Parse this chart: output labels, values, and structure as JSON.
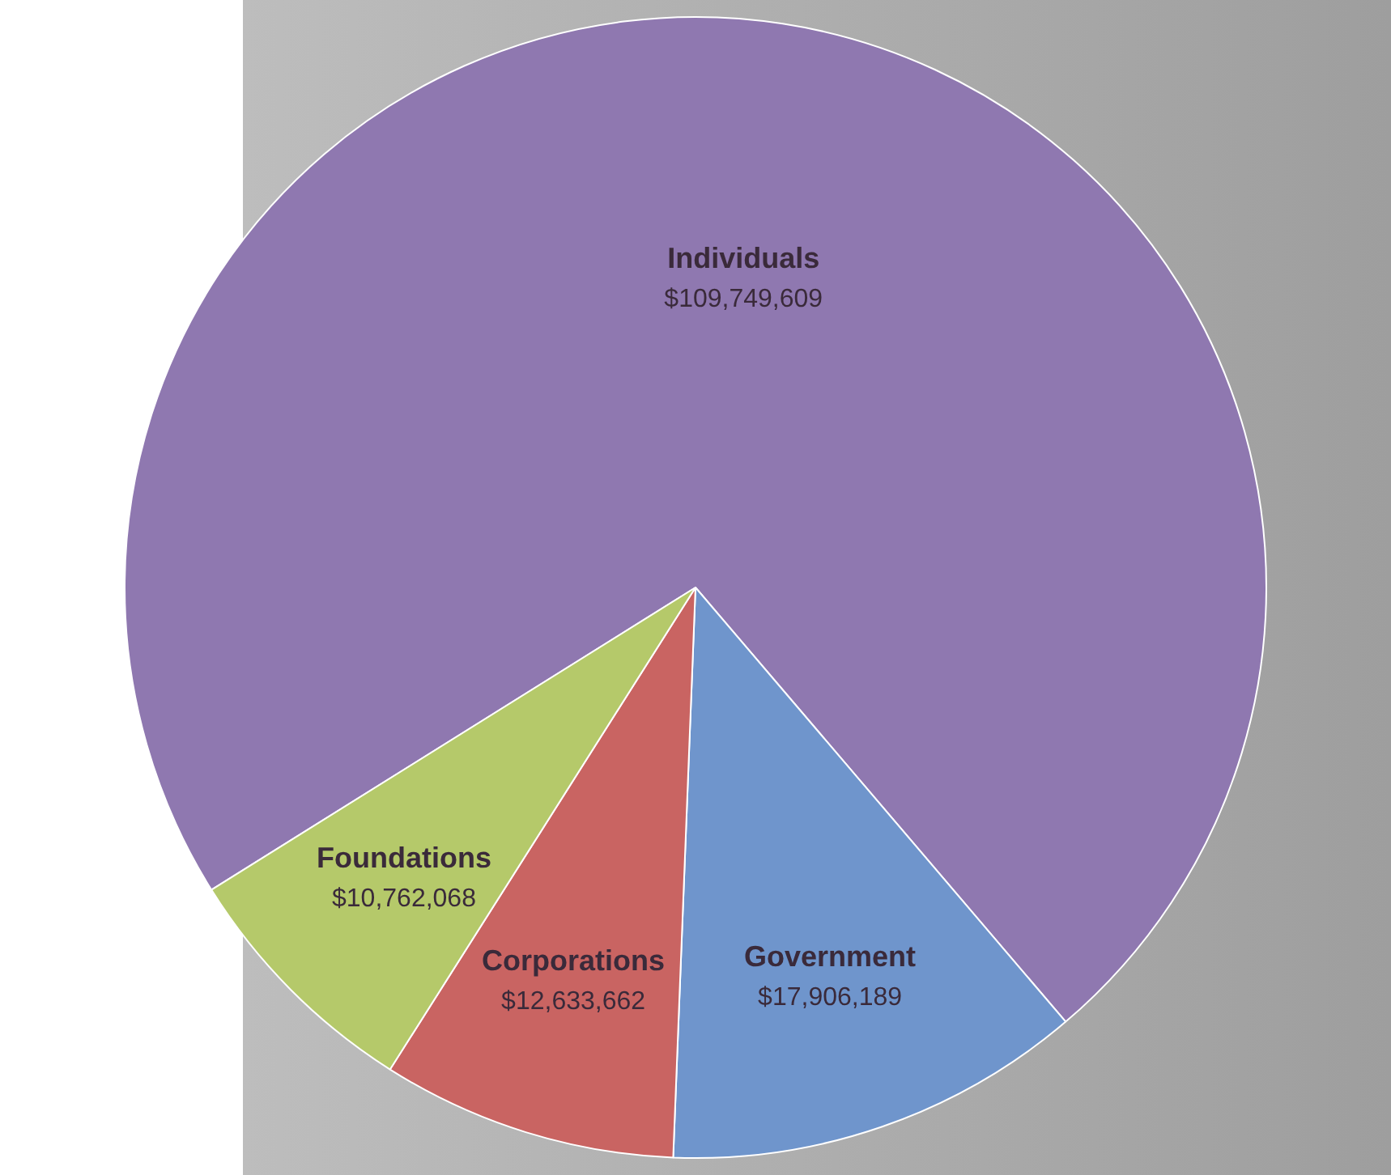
{
  "chart_data": {
    "type": "pie",
    "categories": [
      "Individuals",
      "Government",
      "Corporations",
      "Foundations"
    ],
    "values": [
      109749609,
      17906189,
      12633662,
      10762068
    ],
    "colors": [
      "#8f78b0",
      "#6f95cc",
      "#c96462",
      "#b5c96a"
    ],
    "value_labels": [
      "$109,749,609",
      "$17,906,189",
      "$12,633,662",
      "$10,762,068"
    ],
    "legend": false
  }
}
